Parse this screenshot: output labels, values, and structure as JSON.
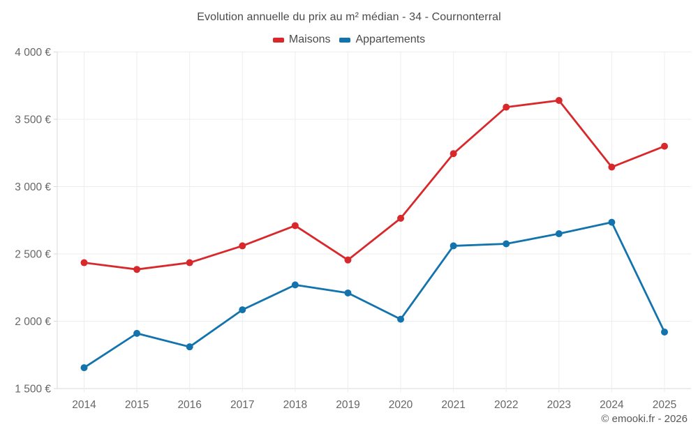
{
  "title": "Evolution annuelle du prix au m² médian - 34 - Cournonterral",
  "copyright": "© emooki.fr - 2026",
  "colors": {
    "maisons": "#d8282c",
    "appartements": "#1273ad",
    "grid": "#ededed",
    "axis": "#d9d9d9",
    "tick_text": "#666666",
    "title_text": "#4a4a4a"
  },
  "legend": [
    {
      "id": "maisons",
      "label": "Maisons",
      "color": "#d8282c"
    },
    {
      "id": "appartements",
      "label": "Appartements",
      "color": "#1273ad"
    }
  ],
  "chart_data": {
    "type": "line",
    "title": "Evolution annuelle du prix au m² médian - 34 - Cournonterral",
    "xlabel": "",
    "ylabel": "",
    "grid": true,
    "legend_position": "top",
    "ylim": [
      1500,
      4000
    ],
    "categories": [
      "2014",
      "2015",
      "2016",
      "2017",
      "2018",
      "2019",
      "2020",
      "2021",
      "2022",
      "2023",
      "2024",
      "2025"
    ],
    "yticks": [
      {
        "value": 1500,
        "label": "1 500 €"
      },
      {
        "value": 2000,
        "label": "2 000 €"
      },
      {
        "value": 2500,
        "label": "2 500 €"
      },
      {
        "value": 3000,
        "label": "3 000 €"
      },
      {
        "value": 3500,
        "label": "3 500 €"
      },
      {
        "value": 4000,
        "label": "4 000 €"
      }
    ],
    "series": [
      {
        "name": "Maisons",
        "color": "#d8282c",
        "values": [
          2435,
          2385,
          2435,
          2560,
          2710,
          2455,
          2765,
          3245,
          3590,
          3640,
          3145,
          3300
        ]
      },
      {
        "name": "Appartements",
        "color": "#1273ad",
        "values": [
          1655,
          1910,
          1810,
          2085,
          2270,
          2210,
          2015,
          2560,
          2575,
          2650,
          2735,
          1920
        ]
      }
    ]
  }
}
